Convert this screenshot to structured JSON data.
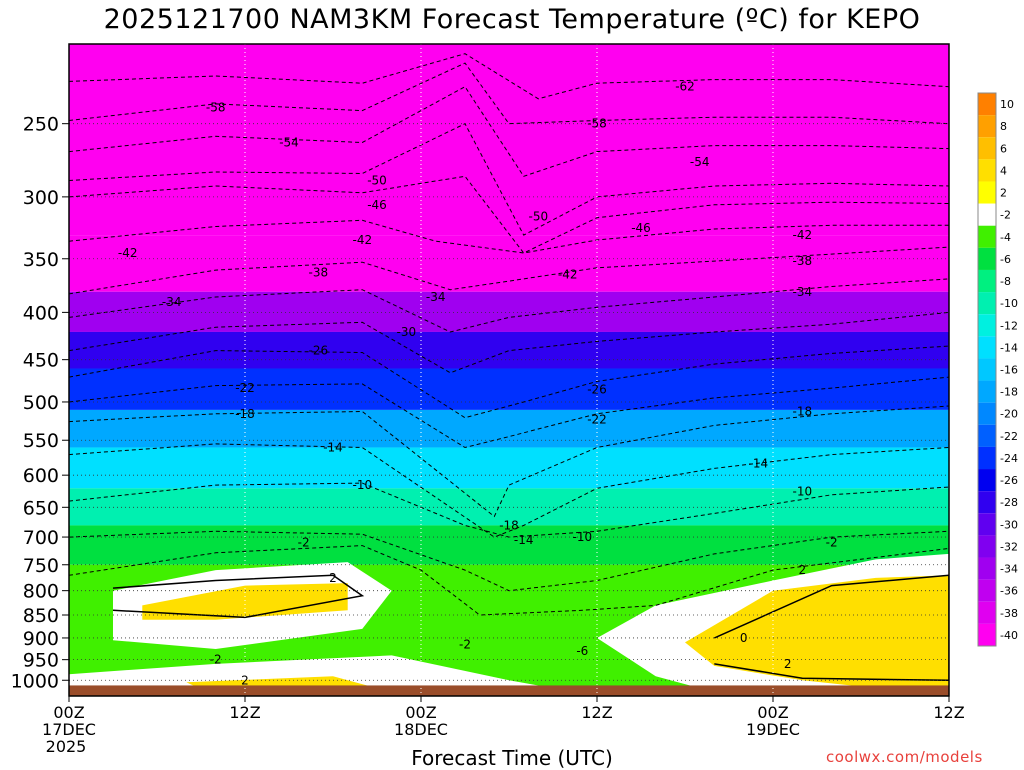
{
  "title": "2025121700 NAM3KM Forecast Temperature (ºC) for KEPO",
  "credit": "coolwx.com/models",
  "colors": {
    "ground": "#9a4d2a",
    "frame": "#000000",
    "contour": "#000000",
    "freezing_line": "#d8008a"
  },
  "chart_data": {
    "type": "heatmap",
    "title": "2025121700 NAM3KM Forecast Temperature (ºC) for KEPO",
    "xlabel": "Forecast Time (UTC)",
    "ylabel": "",
    "y_scale": "log-pressure",
    "y_reversed": true,
    "x_hours_range": [
      0,
      60
    ],
    "y_pressure_range": [
      1040,
      205
    ],
    "y_ticks": [
      250,
      300,
      350,
      400,
      450,
      500,
      550,
      600,
      650,
      700,
      750,
      800,
      850,
      900,
      950,
      1000
    ],
    "x_ticks": [
      {
        "hour": 0,
        "lines": [
          "00Z",
          "17DEC",
          "2025"
        ]
      },
      {
        "hour": 12,
        "lines": [
          "12Z"
        ]
      },
      {
        "hour": 24,
        "lines": [
          "00Z",
          "18DEC"
        ]
      },
      {
        "hour": 36,
        "lines": [
          "12Z"
        ]
      },
      {
        "hour": 48,
        "lines": [
          "00Z",
          "19DEC"
        ]
      },
      {
        "hour": 60,
        "lines": [
          "12Z"
        ]
      }
    ],
    "grid": true,
    "colorbar": {
      "placement": "right",
      "labels": [
        "10",
        "8",
        "6",
        "4",
        "2",
        "-2",
        "-4",
        "-6",
        "-8",
        "-10",
        "-12",
        "-14",
        "-16",
        "-18",
        "-20",
        "-22",
        "-24",
        "-26",
        "-28",
        "-30",
        "-32",
        "-34",
        "-36",
        "-38",
        "-40"
      ],
      "colors": [
        "#ff8000",
        "#ffa000",
        "#ffbf00",
        "#ffdf00",
        "#ffff00",
        "#ffffff",
        "#40f000",
        "#00e040",
        "#00f080",
        "#00f0b0",
        "#00f0e0",
        "#00e0ff",
        "#00c8ff",
        "#00a8ff",
        "#0088ff",
        "#0060ff",
        "#0030ff",
        "#0000f0",
        "#3000f0",
        "#6000f0",
        "#8000f0",
        "#a000f0",
        "#c000f0",
        "#e000f0",
        "#ff00f0"
      ]
    },
    "series": [
      {
        "label": "-62",
        "points": [
          [
            0,
            225
          ],
          [
            10,
            222
          ],
          [
            20,
            226
          ],
          [
            27,
            210
          ],
          [
            32,
            235
          ],
          [
            36,
            226
          ],
          [
            44,
            224
          ],
          [
            52,
            224
          ],
          [
            60,
            228
          ]
        ]
      },
      {
        "label": "-58",
        "points": [
          [
            0,
            248
          ],
          [
            10,
            238
          ],
          [
            20,
            242
          ],
          [
            27,
            215
          ],
          [
            30,
            250
          ],
          [
            36,
            248
          ],
          [
            44,
            246
          ],
          [
            52,
            246
          ],
          [
            60,
            250
          ]
        ]
      },
      {
        "label": "-54",
        "points": [
          [
            0,
            268
          ],
          [
            10,
            258
          ],
          [
            20,
            262
          ],
          [
            27,
            228
          ],
          [
            31,
            285
          ],
          [
            36,
            268
          ],
          [
            44,
            264
          ],
          [
            52,
            264
          ],
          [
            60,
            266
          ]
        ]
      },
      {
        "label": "-50",
        "points": [
          [
            0,
            288
          ],
          [
            10,
            282
          ],
          [
            20,
            283
          ],
          [
            27,
            250
          ],
          [
            31,
            330
          ],
          [
            36,
            300
          ],
          [
            44,
            292
          ],
          [
            52,
            290
          ],
          [
            60,
            292
          ]
        ]
      },
      {
        "label": "-46",
        "points": [
          [
            0,
            300
          ],
          [
            10,
            292
          ],
          [
            20,
            297
          ],
          [
            27,
            285
          ],
          [
            31,
            345
          ],
          [
            36,
            316
          ],
          [
            44,
            306
          ],
          [
            52,
            304
          ],
          [
            60,
            305
          ]
        ]
      },
      {
        "label": "-42",
        "points": [
          [
            0,
            335
          ],
          [
            10,
            323
          ],
          [
            20,
            318
          ],
          [
            25,
            335
          ],
          [
            31,
            345
          ],
          [
            36,
            334
          ],
          [
            44,
            325
          ],
          [
            52,
            322
          ],
          [
            60,
            322
          ]
        ]
      },
      {
        "label": "-38",
        "points": [
          [
            0,
            382
          ],
          [
            10,
            360
          ],
          [
            20,
            353
          ],
          [
            26,
            378
          ],
          [
            30,
            370
          ],
          [
            36,
            358
          ],
          [
            44,
            352
          ],
          [
            52,
            346
          ],
          [
            60,
            340
          ]
        ]
      },
      {
        "label": "-34",
        "points": [
          [
            0,
            405
          ],
          [
            10,
            385
          ],
          [
            20,
            378
          ],
          [
            26,
            420
          ],
          [
            30,
            405
          ],
          [
            36,
            395
          ],
          [
            44,
            385
          ],
          [
            52,
            375
          ],
          [
            60,
            368
          ]
        ]
      },
      {
        "label": "-30",
        "points": [
          [
            0,
            440
          ],
          [
            10,
            415
          ],
          [
            20,
            410
          ],
          [
            26,
            465
          ],
          [
            30,
            440
          ],
          [
            36,
            430
          ],
          [
            44,
            420
          ],
          [
            52,
            412
          ],
          [
            60,
            400
          ]
        ]
      },
      {
        "label": "-26",
        "points": [
          [
            0,
            470
          ],
          [
            10,
            440
          ],
          [
            20,
            442
          ],
          [
            27,
            520
          ],
          [
            31,
            500
          ],
          [
            36,
            475
          ],
          [
            44,
            455
          ],
          [
            52,
            443
          ],
          [
            60,
            435
          ]
        ]
      },
      {
        "label": "-22",
        "points": [
          [
            0,
            500
          ],
          [
            10,
            480
          ],
          [
            20,
            478
          ],
          [
            27,
            560
          ],
          [
            30,
            545
          ],
          [
            36,
            515
          ],
          [
            44,
            495
          ],
          [
            52,
            483
          ],
          [
            60,
            470
          ]
        ]
      },
      {
        "label": "-18",
        "points": [
          [
            0,
            525
          ],
          [
            10,
            515
          ],
          [
            20,
            512
          ],
          [
            29,
            665
          ],
          [
            30,
            615
          ],
          [
            36,
            560
          ],
          [
            44,
            530
          ],
          [
            52,
            515
          ],
          [
            60,
            505
          ]
        ]
      },
      {
        "label": "-14",
        "points": [
          [
            0,
            570
          ],
          [
            10,
            555
          ],
          [
            20,
            560
          ],
          [
            29,
            700
          ],
          [
            31,
            680
          ],
          [
            36,
            620
          ],
          [
            44,
            590
          ],
          [
            52,
            570
          ],
          [
            60,
            560
          ]
        ]
      },
      {
        "label": "-10",
        "points": [
          [
            0,
            640
          ],
          [
            10,
            615
          ],
          [
            20,
            612
          ],
          [
            27,
            680
          ],
          [
            30,
            700
          ],
          [
            36,
            690
          ],
          [
            44,
            660
          ],
          [
            52,
            630
          ],
          [
            60,
            618
          ]
        ]
      },
      {
        "label": "-6",
        "points": [
          [
            0,
            700
          ],
          [
            10,
            690
          ],
          [
            20,
            695
          ],
          [
            27,
            760
          ],
          [
            30,
            800
          ],
          [
            36,
            780
          ],
          [
            44,
            730
          ],
          [
            52,
            700
          ],
          [
            60,
            690
          ]
        ]
      },
      {
        "label": "-2",
        "points": [
          [
            0,
            770
          ],
          [
            10,
            728
          ],
          [
            20,
            715
          ],
          [
            24,
            760
          ],
          [
            28,
            850
          ],
          [
            35,
            840
          ],
          [
            40,
            830
          ],
          [
            48,
            760
          ],
          [
            60,
            720
          ]
        ]
      },
      {
        "label": "2",
        "points": [
          [
            3,
            795
          ],
          [
            10,
            780
          ],
          [
            18,
            770
          ],
          [
            20,
            810
          ],
          [
            12,
            855
          ],
          [
            3,
            840
          ]
        ]
      },
      {
        "label": "0",
        "points": [
          [
            44,
            900
          ],
          [
            52,
            790
          ],
          [
            60,
            770
          ],
          [
            60,
            1000
          ],
          [
            50,
            995
          ],
          [
            44,
            960
          ]
        ]
      }
    ],
    "layers": [
      {
        "top": 205,
        "bottom": 330,
        "temp": -50
      },
      {
        "top": 330,
        "bottom": 380,
        "temp": -40
      },
      {
        "top": 380,
        "bottom": 420,
        "temp": -34
      },
      {
        "top": 420,
        "bottom": 460,
        "temp": -28
      },
      {
        "top": 460,
        "bottom": 510,
        "temp": -24
      },
      {
        "top": 510,
        "bottom": 560,
        "temp": -18
      },
      {
        "top": 560,
        "bottom": 620,
        "temp": -14
      },
      {
        "top": 620,
        "bottom": 680,
        "temp": -10
      },
      {
        "top": 680,
        "bottom": 750,
        "temp": -6
      },
      {
        "top": 750,
        "bottom": 1040,
        "temp": -3
      }
    ],
    "warm_areas": [
      {
        "temp": 0,
        "points": [
          [
            3,
            800
          ],
          [
            10,
            760
          ],
          [
            19,
            745
          ],
          [
            22,
            800
          ],
          [
            20,
            880
          ],
          [
            10,
            925
          ],
          [
            3,
            905
          ]
        ]
      },
      {
        "temp": 0,
        "points": [
          [
            0,
            985
          ],
          [
            10,
            960
          ],
          [
            22,
            940
          ],
          [
            30,
            1000
          ],
          [
            36,
            1040
          ],
          [
            0,
            1040
          ]
        ]
      },
      {
        "temp": 0,
        "points": [
          [
            36,
            900
          ],
          [
            40,
            830
          ],
          [
            48,
            780
          ],
          [
            55,
            740
          ],
          [
            60,
            730
          ],
          [
            60,
            1040
          ],
          [
            45,
            1040
          ],
          [
            40,
            990
          ]
        ]
      },
      {
        "temp": 4,
        "points": [
          [
            5,
            830
          ],
          [
            12,
            790
          ],
          [
            19,
            785
          ],
          [
            19,
            840
          ],
          [
            10,
            860
          ],
          [
            5,
            860
          ]
        ]
      },
      {
        "temp": 4,
        "points": [
          [
            42,
            910
          ],
          [
            48,
            800
          ],
          [
            55,
            775
          ],
          [
            60,
            770
          ],
          [
            60,
            1040
          ],
          [
            50,
            1000
          ],
          [
            44,
            965
          ]
        ]
      },
      {
        "temp": 4,
        "points": [
          [
            8,
            1005
          ],
          [
            18,
            990
          ],
          [
            22,
            1030
          ],
          [
            10,
            1040
          ]
        ]
      }
    ],
    "label_positions": [
      {
        "text": "-62",
        "hour": 42,
        "p": 228
      },
      {
        "text": "-58",
        "hour": 10,
        "p": 240
      },
      {
        "text": "-58",
        "hour": 36,
        "p": 250
      },
      {
        "text": "-54",
        "hour": 15,
        "p": 262
      },
      {
        "text": "-54",
        "hour": 43,
        "p": 275
      },
      {
        "text": "-50",
        "hour": 21,
        "p": 288
      },
      {
        "text": "-50",
        "hour": 32,
        "p": 315
      },
      {
        "text": "-46",
        "hour": 21,
        "p": 306
      },
      {
        "text": "-46",
        "hour": 39,
        "p": 324
      },
      {
        "text": "-42",
        "hour": 4,
        "p": 345
      },
      {
        "text": "-42",
        "hour": 20,
        "p": 334
      },
      {
        "text": "-42",
        "hour": 34,
        "p": 364
      },
      {
        "text": "-42",
        "hour": 50,
        "p": 330
      },
      {
        "text": "-38",
        "hour": 17,
        "p": 362
      },
      {
        "text": "-38",
        "hour": 50,
        "p": 352
      },
      {
        "text": "-34",
        "hour": 7,
        "p": 390
      },
      {
        "text": "-34",
        "hour": 25,
        "p": 385
      },
      {
        "text": "-34",
        "hour": 50,
        "p": 380
      },
      {
        "text": "-30",
        "hour": 23,
        "p": 420
      },
      {
        "text": "-26",
        "hour": 17,
        "p": 440
      },
      {
        "text": "-26",
        "hour": 36,
        "p": 485
      },
      {
        "text": "-22",
        "hour": 12,
        "p": 483
      },
      {
        "text": "-22",
        "hour": 36,
        "p": 522
      },
      {
        "text": "-18",
        "hour": 12,
        "p": 515
      },
      {
        "text": "-18",
        "hour": 50,
        "p": 512
      },
      {
        "text": "-18",
        "hour": 30,
        "p": 680
      },
      {
        "text": "-14",
        "hour": 18,
        "p": 560
      },
      {
        "text": "-14",
        "hour": 47,
        "p": 583
      },
      {
        "text": "-14",
        "hour": 31,
        "p": 705
      },
      {
        "text": "-10",
        "hour": 20,
        "p": 615
      },
      {
        "text": "-10",
        "hour": 50,
        "p": 625
      },
      {
        "text": "-10",
        "hour": 35,
        "p": 700
      },
      {
        "text": "-6",
        "hour": 35,
        "p": 930
      },
      {
        "text": "-2",
        "hour": 16,
        "p": 710
      },
      {
        "text": "-2",
        "hour": 52,
        "p": 710
      },
      {
        "text": "-2",
        "hour": 27,
        "p": 915
      },
      {
        "text": "-2",
        "hour": 10,
        "p": 950
      },
      {
        "text": "2",
        "hour": 18,
        "p": 775
      },
      {
        "text": "2",
        "hour": 50,
        "p": 760
      },
      {
        "text": "2",
        "hour": 12,
        "p": 1000
      },
      {
        "text": "2",
        "hour": 49,
        "p": 960
      },
      {
        "text": "0",
        "hour": 46,
        "p": 900
      }
    ]
  }
}
